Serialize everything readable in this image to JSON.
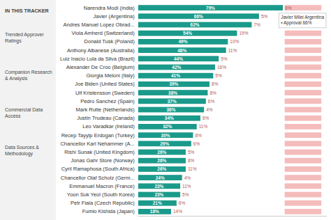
{
  "chart_data": {
    "type": "bar",
    "orientation": "horizontal",
    "categories": [
      "Narendra Modi (India)",
      "Javier (Argentina)",
      "Andres Manuel Lopez Obrad...",
      "Viola Amherd (Switzerland)",
      "Donald Tusk (Poland)",
      "Anthony Albanese (Australia)",
      "Luiz Inacio Lula da Silva (Brazil)",
      "Alexander De Croo (Belgium)",
      "Giorgia Meloni (Italy)",
      "Joe Biden (United States)",
      "Ulf Kristensson (Sweden)",
      "Pedro Sanchez (Spain)",
      "Mark Rutte (Netherlands)",
      "Justin Trudeau (Canada)",
      "Leo Varadkar (Ireland)",
      "Recep Tayyip Erdogan (Turkey)",
      "Chancellor Karl Nehammer (A...",
      "Rishi Sunak (United Kingdom)",
      "Jonas Gahr Store (Norway)",
      "Cyril Ramaphosa (South Africa)",
      "Chancellor Olaf Scholz (Germ...",
      "Emmanuel Macron (France)",
      "Yoon Suk Yeol (South Korea)",
      "Petr Fiala (Czech Republic)",
      "Fumio Kishida (Japan)"
    ],
    "values": [
      79,
      66,
      62,
      54,
      49,
      48,
      44,
      42,
      41,
      39,
      38,
      37,
      36,
      34,
      32,
      30,
      29,
      26,
      26,
      26,
      24,
      23,
      23,
      21,
      18
    ],
    "value_labels": [
      "79%",
      "66%",
      "62%",
      "54%",
      "49%",
      "48%",
      "44%",
      "42%",
      "41%",
      "39%",
      "38%",
      "37%",
      "36%",
      "34%",
      "32%",
      "30%",
      "29%",
      "26%",
      "26%",
      "26%",
      "24%",
      "23%",
      "23%",
      "21%",
      "18%"
    ],
    "color": "#1a9a8a",
    "data_labels": true,
    "disapprove": [
      8,
      5,
      7,
      19,
      10,
      11,
      5,
      16,
      5,
      8,
      8,
      6,
      4,
      6,
      11,
      8,
      6,
      5,
      8,
      11,
      4,
      11,
      5,
      6,
      14
    ],
    "disapprove_labels": [
      "8%",
      "5%",
      "7%",
      "19%",
      "10%",
      "11%",
      "5%",
      "16%",
      "5%",
      "8%",
      "8%",
      "6%",
      "4%",
      "6%",
      "11%",
      "8%",
      "6%",
      "5%",
      "8%",
      "11%",
      "4%",
      "11%",
      "5%",
      "6%",
      "14%"
    ],
    "band": [
      80,
      100
    ],
    "band_color": "#f4bcbb",
    "xlim": [
      0,
      103
    ],
    "tick_labels": "y",
    "grid": false,
    "sidebar_labels": [
      "IN THIS TRACKER",
      "Trended Approver\nRatings",
      "Companion Research\n& Analysis",
      "Commercial Data\nAccess",
      "Data Sources &\nMethodology"
    ],
    "annotations": [
      "Javier Milei Argentina\n▪ Approval 66%"
    ]
  }
}
